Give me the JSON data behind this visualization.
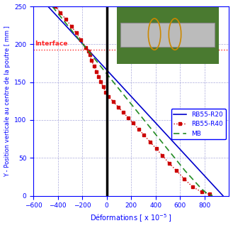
{
  "xlabel_base": "Déformations [ x 10",
  "xlabel_exp": "-5",
  "xlabel_end": " ]",
  "ylabel": "Y - Position verticale au centre de la poutre [ mm ]",
  "xlim": [
    -600,
    1000
  ],
  "ylim": [
    0,
    250
  ],
  "xticks": [
    -600,
    -400,
    -200,
    0,
    200,
    400,
    600,
    800
  ],
  "yticks": [
    0,
    50,
    100,
    150,
    200,
    250
  ],
  "interface_y": 193,
  "interface_label": "Interface",
  "interface_color": "#ff2222",
  "rb55r20_color": "#0000cc",
  "rb55r40_color": "#cc0000",
  "mb_color": "#228B22",
  "grid_color": "#8888cc",
  "rb55r20_x0": -480,
  "rb55r20_y0": 250,
  "rb55r20_x1": 950,
  "rb55r20_y1": 0,
  "rb55r40_pts_x": [
    -420,
    -380,
    -335,
    -290,
    -250,
    -210,
    -170,
    -150,
    -140,
    -125,
    -105,
    -85,
    -65,
    -50,
    -30,
    -10,
    15,
    55,
    95,
    135,
    175,
    215,
    260,
    305,
    355,
    405,
    455,
    510,
    570,
    635,
    700,
    775,
    840
  ],
  "rb55r40_pts_y": [
    250,
    242,
    233,
    224,
    215,
    206,
    196,
    191,
    186,
    179,
    171,
    164,
    157,
    151,
    144,
    137,
    131,
    124,
    117,
    110,
    103,
    96,
    88,
    80,
    71,
    62,
    53,
    43,
    33,
    22,
    12,
    5,
    2
  ],
  "mb_x": [
    -445,
    -405,
    -365,
    -325,
    -285,
    -245,
    -205,
    -165,
    -125,
    -85,
    -45,
    -5,
    35,
    75,
    115,
    155,
    195,
    235,
    275,
    315,
    355,
    395,
    435,
    475,
    515,
    555,
    595,
    640,
    685,
    730,
    775,
    820,
    865
  ],
  "mb_y": [
    250,
    242,
    234,
    226,
    218,
    210,
    202,
    194,
    186,
    178,
    170,
    162,
    154,
    146,
    138,
    130,
    122,
    114,
    106,
    98,
    90,
    82,
    74,
    66,
    58,
    50,
    42,
    33,
    25,
    17,
    9,
    3,
    0
  ],
  "legend_rb55r20": "RB55-R20",
  "legend_rb55r40": "RB55-R40",
  "legend_mb": "MB",
  "inset_bg": "#4a7a30",
  "inset_beam_color": "#c8c8c8",
  "inset_rebar_color": "#cc8800"
}
